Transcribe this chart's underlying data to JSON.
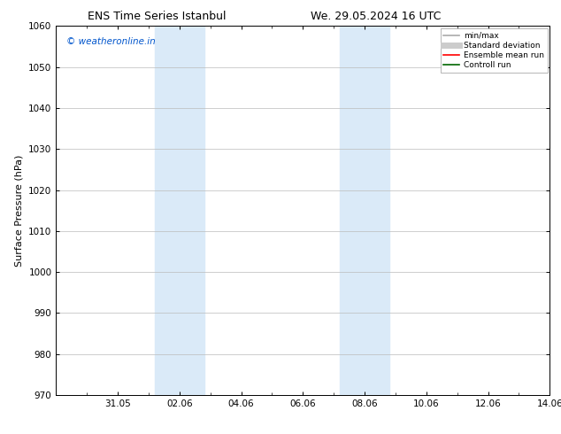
{
  "title_left": "ENS Time Series Istanbul",
  "title_right": "We. 29.05.2024 16 UTC",
  "ylabel": "Surface Pressure (hPa)",
  "ylim": [
    970,
    1060
  ],
  "yticks": [
    970,
    980,
    990,
    1000,
    1010,
    1020,
    1030,
    1040,
    1050,
    1060
  ],
  "xlim": [
    0.0,
    16.0
  ],
  "xtick_positions": [
    2,
    4,
    6,
    8,
    10,
    12,
    14,
    16
  ],
  "xtick_labels": [
    "31.05",
    "02.06",
    "04.06",
    "06.06",
    "08.06",
    "10.06",
    "12.06",
    "14.06"
  ],
  "shaded_bands": [
    {
      "x_start": 3.2,
      "x_end": 4.8,
      "color": "#daeaf8"
    },
    {
      "x_start": 9.2,
      "x_end": 10.8,
      "color": "#daeaf8"
    }
  ],
  "watermark": "© weatheronline.in",
  "watermark_color": "#0055cc",
  "legend_items": [
    {
      "label": "min/max",
      "color": "#aaaaaa",
      "lw": 1.2,
      "style": "solid"
    },
    {
      "label": "Standard deviation",
      "color": "#cccccc",
      "lw": 5,
      "style": "solid"
    },
    {
      "label": "Ensemble mean run",
      "color": "#ff0000",
      "lw": 1.2,
      "style": "solid"
    },
    {
      "label": "Controll run",
      "color": "#006600",
      "lw": 1.2,
      "style": "solid"
    }
  ],
  "bg_color": "#ffffff",
  "grid_color": "#bbbbbb",
  "tick_label_fontsize": 7.5,
  "axis_label_fontsize": 8,
  "title_fontsize": 9,
  "watermark_fontsize": 7.5
}
